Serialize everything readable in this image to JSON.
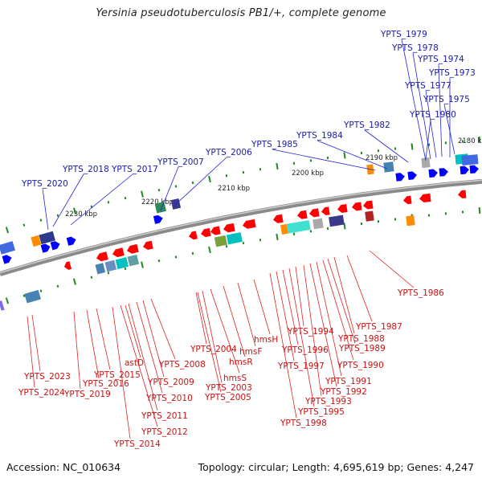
{
  "title": "Yersinia pseudotuberculosis PB1/+, complete genome",
  "footer": {
    "accession": "Accession: NC_010634",
    "summary": "Topology: circular; Length: 4,695,619 bp; Genes: 4,247"
  },
  "colors": {
    "forward_label": "#1a1aa8",
    "reverse_label": "#cc1111",
    "forward_gene": "#0000ff",
    "reverse_gene": "#ff0000",
    "backbone": "#8a8a8a",
    "tick": "#1e8a1e"
  },
  "scale_labels": [
    "2180 kbp",
    "2190 kbp",
    "2200 kbp",
    "2210 kbp",
    "2220 kbp",
    "2230 kbp"
  ],
  "forward_labels": [
    "YPTS_1979",
    "YPTS_1978",
    "YPTS_1974",
    "YPTS_1973",
    "YPTS_1977",
    "YPTS_1975",
    "YPTS_1980",
    "YPTS_1982",
    "YPTS_1984",
    "YPTS_1985",
    "YPTS_2006",
    "YPTS_2007",
    "YPTS_2017",
    "YPTS_2018",
    "YPTS_2020"
  ],
  "reverse_labels": [
    "YPTS_1986",
    "YPTS_1987",
    "YPTS_1988",
    "YPTS_1989",
    "YPTS_1990",
    "YPTS_1991",
    "YPTS_1992",
    "YPTS_1993",
    "YPTS_1994",
    "YPTS_1995",
    "YPTS_1996",
    "YPTS_1997",
    "YPTS_1998",
    "hmsH",
    "hmsF",
    "hmsR",
    "hmsS",
    "YPTS_2003",
    "YPTS_2004",
    "YPTS_2005",
    "YPTS_2008",
    "YPTS_2009",
    "YPTS_2010",
    "YPTS_2011",
    "YPTS_2012",
    "YPTS_2014",
    "astD",
    "YPTS_2015",
    "YPTS_2016",
    "YPTS_2019",
    "YPTS_2023",
    "YPTS_2024"
  ]
}
